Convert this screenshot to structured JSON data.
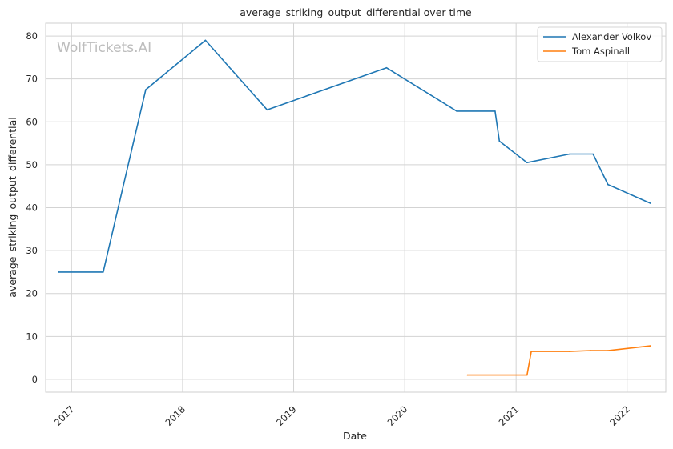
{
  "chart_data": {
    "type": "line",
    "title": "average_striking_output_differential over time",
    "xlabel": "Date",
    "ylabel": "average_striking_output_differential",
    "watermark": "WolfTickets.AI",
    "x_ticks": [
      "2017",
      "2018",
      "2019",
      "2020",
      "2021",
      "2022"
    ],
    "y_ticks": [
      0,
      10,
      20,
      30,
      40,
      50,
      60,
      70,
      80
    ],
    "xlim": [
      "2016-10-08",
      "2022-05-08"
    ],
    "ylim": [
      -3,
      83
    ],
    "grid": true,
    "legend_position": "top-right",
    "series": [
      {
        "name": "Alexander Volkov",
        "color": "#1f77b4",
        "points": [
          {
            "date": "2016-11-19",
            "value": 25.0
          },
          {
            "date": "2017-04-15",
            "value": 25.0
          },
          {
            "date": "2017-09-02",
            "value": 67.5
          },
          {
            "date": "2018-03-17",
            "value": 79.0
          },
          {
            "date": "2018-10-06",
            "value": 62.8
          },
          {
            "date": "2019-11-02",
            "value": 72.6
          },
          {
            "date": "2020-06-20",
            "value": 62.5
          },
          {
            "date": "2020-10-24",
            "value": 62.5
          },
          {
            "date": "2020-11-07",
            "value": 55.5
          },
          {
            "date": "2021-02-06",
            "value": 50.5
          },
          {
            "date": "2021-06-26",
            "value": 52.5
          },
          {
            "date": "2021-09-11",
            "value": 52.5
          },
          {
            "date": "2021-10-30",
            "value": 45.4
          },
          {
            "date": "2022-03-19",
            "value": 41.0
          }
        ]
      },
      {
        "name": "Tom Aspinall",
        "color": "#ff7f0e",
        "points": [
          {
            "date": "2020-07-25",
            "value": 1.0
          },
          {
            "date": "2021-02-06",
            "value": 1.0
          },
          {
            "date": "2021-02-20",
            "value": 6.5
          },
          {
            "date": "2021-06-26",
            "value": 6.5
          },
          {
            "date": "2021-09-04",
            "value": 6.7
          },
          {
            "date": "2021-10-30",
            "value": 6.7
          },
          {
            "date": "2022-03-19",
            "value": 7.8
          }
        ]
      }
    ]
  }
}
